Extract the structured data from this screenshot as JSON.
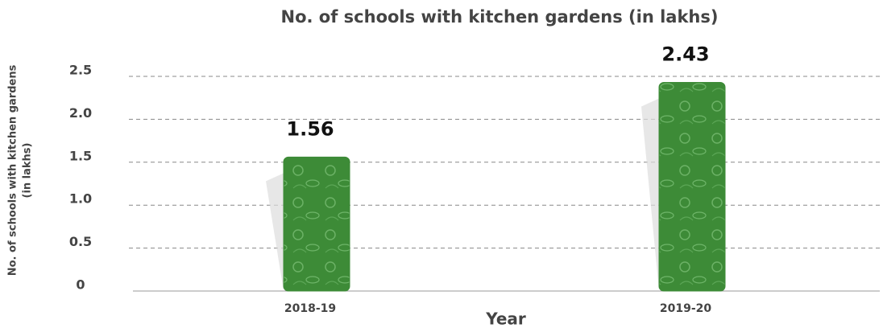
{
  "chart_data": {
    "type": "bar",
    "title": "No. of schools with kitchen gardens (in lakhs)",
    "xlabel": "Year",
    "ylabel": [
      "No. of schools with kitchen gardens",
      "(in lakhs)"
    ],
    "categories": [
      "2018-19",
      "2019-20"
    ],
    "values": [
      1.56,
      2.43
    ],
    "color": "#3d8b37",
    "ylim": [
      0,
      2.5
    ],
    "yticks": [
      0,
      0.5,
      {
        "value": 1,
        "label": "1.0"
      },
      1.5,
      {
        "value": 2,
        "label": "2.0"
      },
      2.5
    ],
    "grid": true
  }
}
